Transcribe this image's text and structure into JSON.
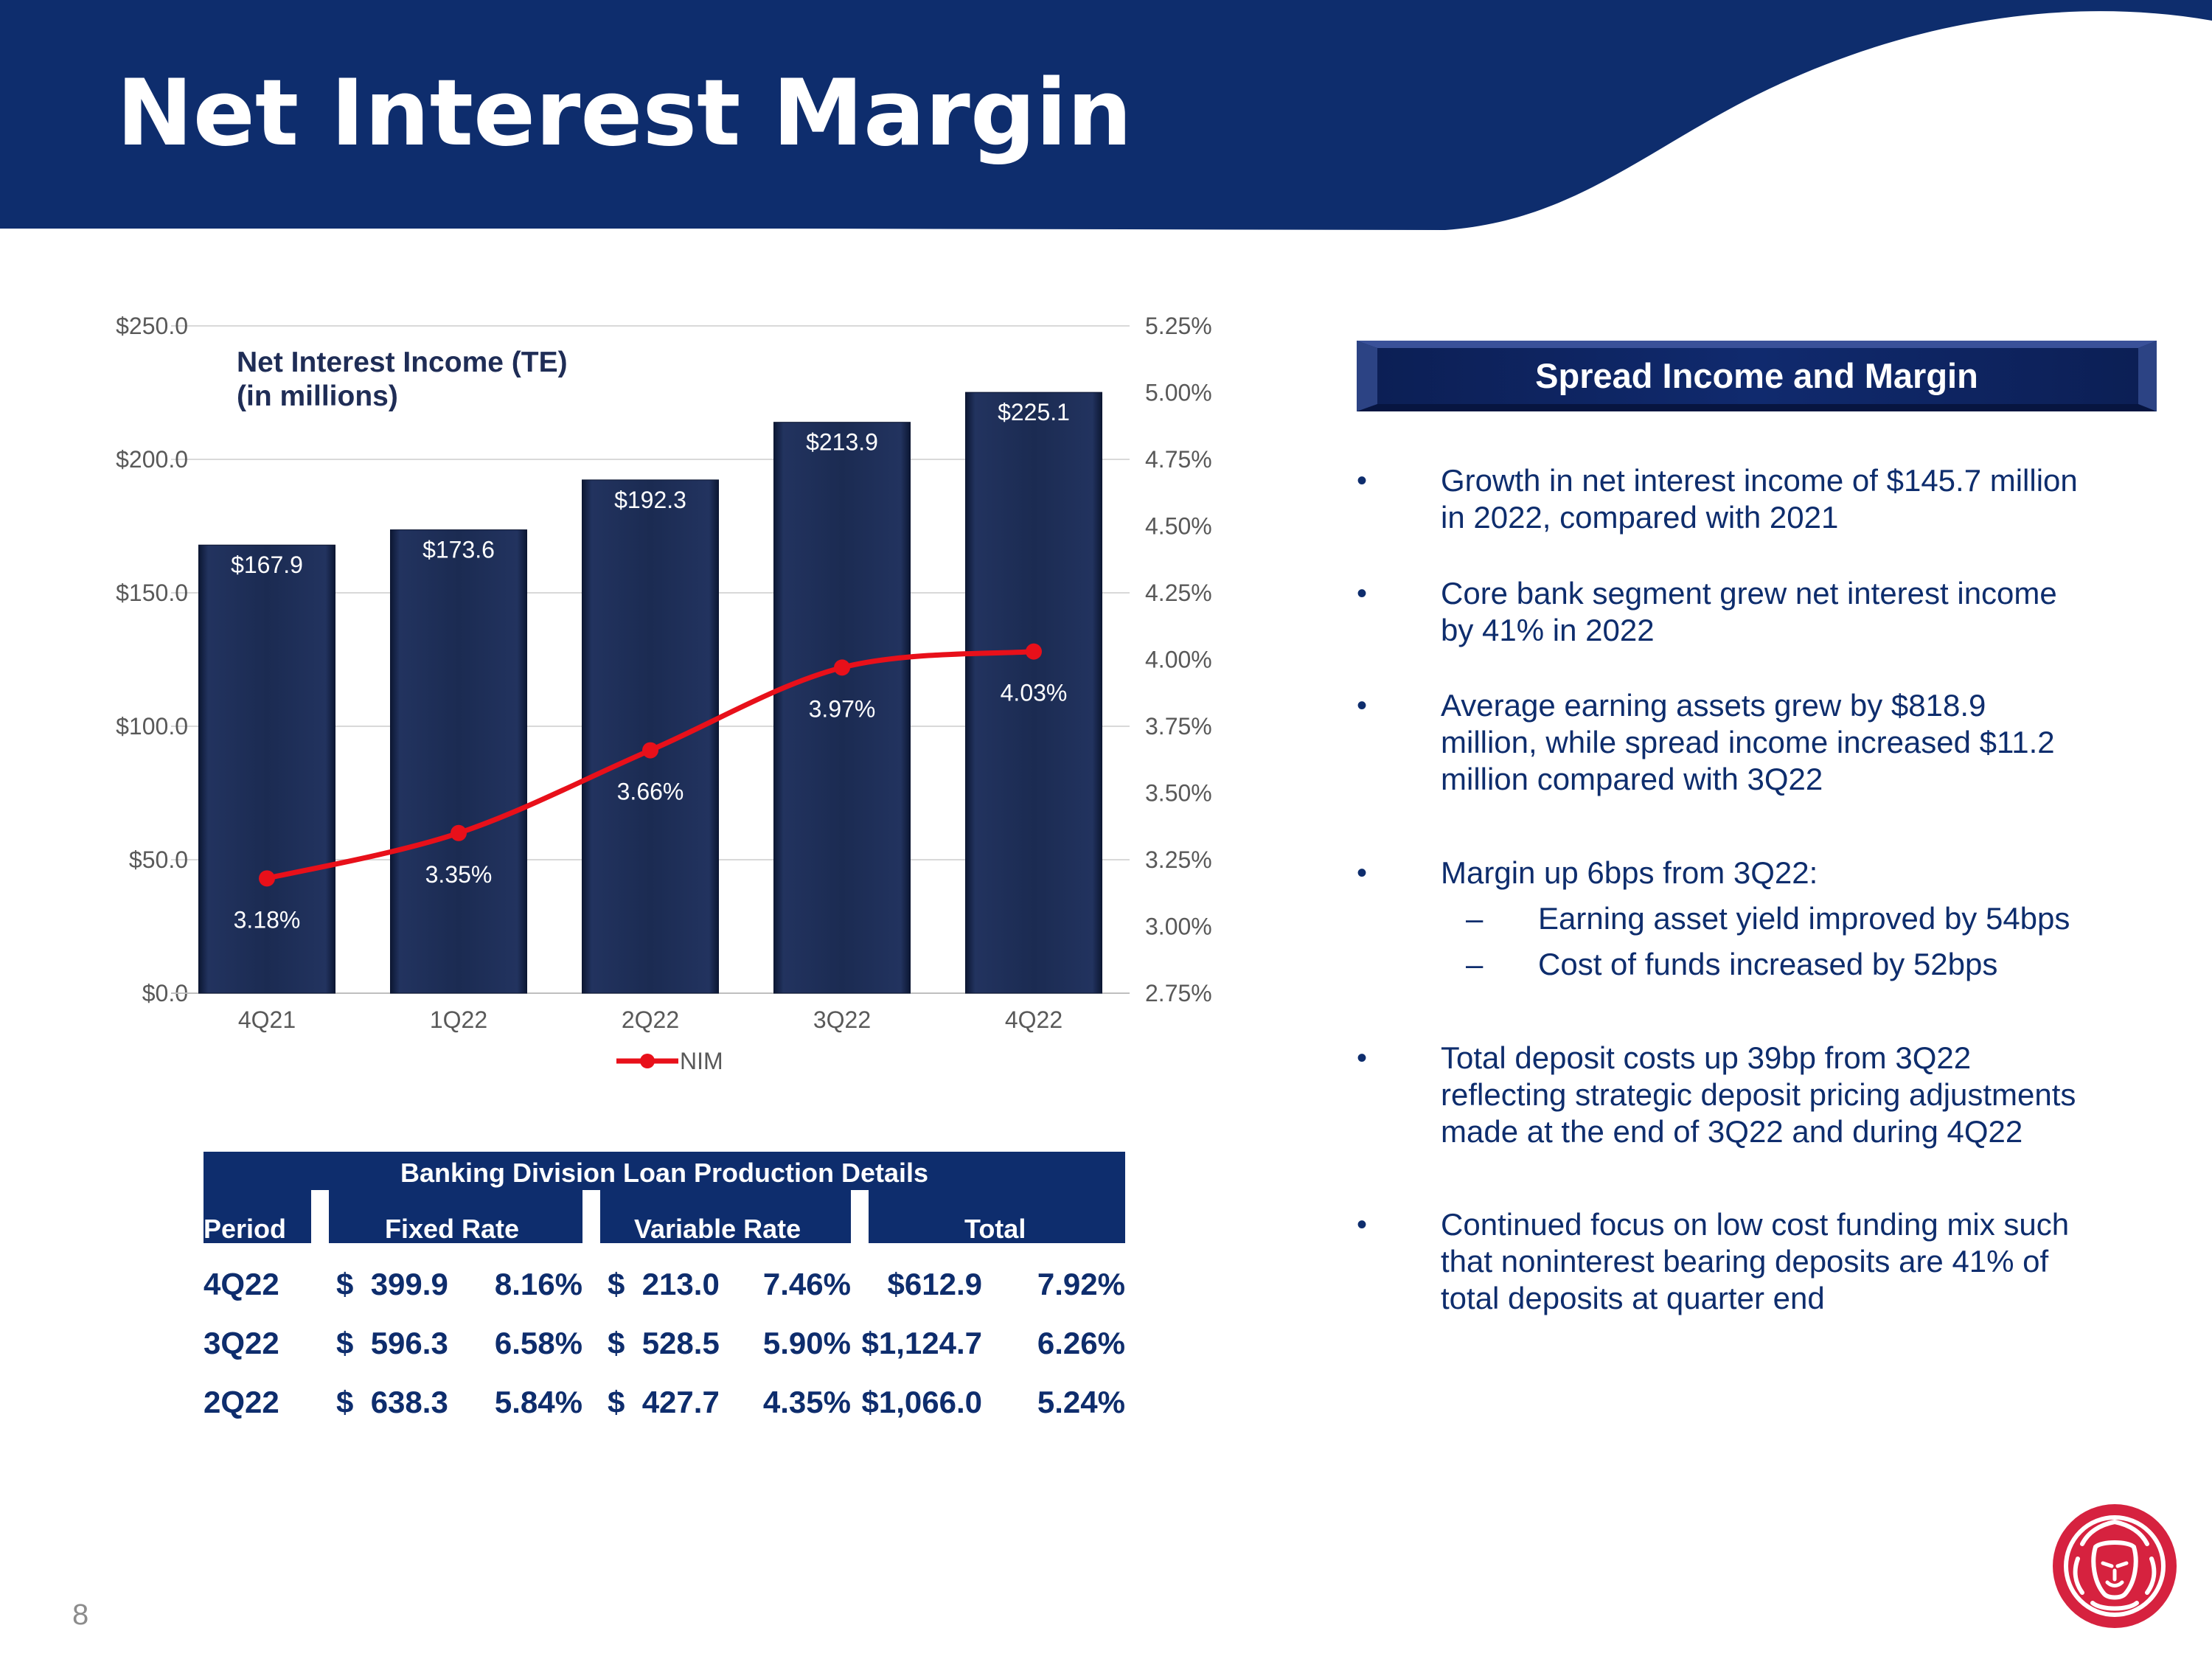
{
  "header": {
    "title": "Net Interest Margin"
  },
  "colors": {
    "navy": "#0e2d6d",
    "bar": "#1b2b52",
    "nim_line": "#e8101a",
    "text": "#0e2d6d",
    "logo": "#d6223f"
  },
  "chart_data": {
    "type": "bar+line",
    "title_lines": [
      "Net Interest Income (TE)",
      "(in millions)"
    ],
    "categories": [
      "4Q21",
      "1Q22",
      "2Q22",
      "3Q22",
      "4Q22"
    ],
    "series": [
      {
        "type": "bar",
        "axis": "left",
        "values": [
          167.9,
          173.6,
          192.3,
          213.9,
          225.1
        ],
        "labels": [
          "$167.9",
          "$173.6",
          "$192.3",
          "$213.9",
          "$225.1"
        ]
      },
      {
        "type": "line",
        "axis": "right",
        "name": "NIM",
        "values": [
          3.18,
          3.35,
          3.66,
          3.97,
          4.03
        ],
        "labels": [
          "3.18%",
          "3.35%",
          "3.66%",
          "3.97%",
          "4.03%"
        ]
      }
    ],
    "y_left": {
      "range": [
        0,
        250
      ],
      "ticks": [
        "$0.0",
        "$50.0",
        "$100.0",
        "$150.0",
        "$200.0",
        "$250.0"
      ]
    },
    "y_right": {
      "range": [
        2.75,
        5.25
      ],
      "ticks": [
        "2.75%",
        "3.00%",
        "3.25%",
        "3.50%",
        "3.75%",
        "4.00%",
        "4.25%",
        "4.50%",
        "4.75%",
        "5.00%",
        "5.25%"
      ]
    },
    "grid": true,
    "legend": "bottom"
  },
  "loan_table": {
    "title": "Banking Division Loan Production Details",
    "headers": [
      "Period",
      "Fixed Rate",
      "Variable Rate",
      "Total"
    ],
    "rows": [
      {
        "period": "4Q22",
        "fixed_amt": "$  399.9",
        "fixed_rate": "8.16%",
        "var_amt": "$  213.0",
        "var_rate": "7.46%",
        "total_amt": "$612.9",
        "total_rate": "7.92%"
      },
      {
        "period": "3Q22",
        "fixed_amt": "$  596.3",
        "fixed_rate": "6.58%",
        "var_amt": "$  528.5",
        "var_rate": "5.90%",
        "total_amt": "$1,124.7",
        "total_rate": "6.26%"
      },
      {
        "period": "2Q22",
        "fixed_amt": "$  638.3",
        "fixed_rate": "5.84%",
        "var_amt": "$  427.7",
        "var_rate": "4.35%",
        "total_amt": "$1,066.0",
        "total_rate": "5.24%"
      }
    ]
  },
  "side": {
    "title": "Spread Income and Margin",
    "bullet_glyph": "•",
    "dash_glyph": "–",
    "bullets": [
      {
        "lines": [
          "Growth in net interest income of $145.7 million",
          "in 2022, compared with 2021"
        ]
      },
      {
        "lines": [
          "Core bank segment grew net interest income",
          "by 41% in 2022"
        ]
      },
      {
        "lines": [
          "Average earning assets grew by $818.9",
          "million, while spread income increased $11.2",
          "million compared with 3Q22"
        ]
      },
      {
        "lines": [
          "Margin up 6bps from 3Q22:"
        ],
        "subs": [
          "Earning asset yield improved by 54bps",
          "Cost of funds increased by 52bps"
        ]
      },
      {
        "lines": [
          "Total deposit costs up 39bp from 3Q22",
          "reflecting strategic deposit pricing adjustments",
          "made at the end of 3Q22 and during 4Q22"
        ]
      },
      {
        "lines": [
          "Continued focus on low cost funding mix such",
          "that noninterest bearing deposits are 41% of",
          "total deposits at quarter end"
        ]
      }
    ]
  },
  "footer": {
    "page_number": "8"
  }
}
